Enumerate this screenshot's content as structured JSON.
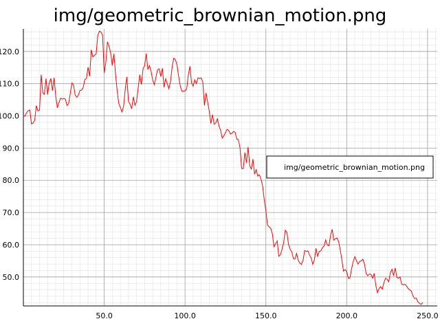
{
  "chart_data": {
    "type": "line",
    "title": "img/geometric_brownian_motion.png",
    "xlabel": "",
    "ylabel": "",
    "xlim": [
      0,
      256
    ],
    "ylim": [
      41,
      127
    ],
    "grid": true,
    "legend_placement": "right",
    "x_ticks": [
      50,
      100,
      150,
      200,
      250
    ],
    "x_tick_labels": [
      "50.0",
      "100.0",
      "150.0",
      "200.0",
      "250.0"
    ],
    "y_ticks": [
      50,
      60,
      70,
      80,
      90,
      100,
      110,
      120
    ],
    "y_tick_labels": [
      "50.0",
      "60.0",
      "70.0",
      "80.0",
      "90.0",
      "100.0",
      "110.0",
      "120.0"
    ],
    "series": [
      {
        "name": "img/geometric_brownian_motion.png",
        "color": "#ff0000",
        "x_start": 0,
        "x_step": 1,
        "values": [
          99.9,
          100.0,
          101.0,
          101.6,
          101.8,
          97.5,
          97.8,
          98.6,
          103.2,
          101.6,
          101.8,
          112.8,
          107.1,
          106.7,
          111.6,
          106.6,
          110.3,
          111.6,
          107.8,
          111.8,
          106.2,
          102.5,
          104.1,
          105.5,
          105.2,
          105.4,
          105.2,
          103.2,
          103.8,
          106.9,
          110.2,
          109.6,
          106.5,
          105.8,
          106.4,
          107.9,
          108.0,
          108.8,
          111.2,
          111.6,
          115.1,
          112.3,
          120.5,
          118.3,
          118.8,
          119.2,
          124.9,
          126.3,
          126.0,
          125.0,
          113.3,
          116.6,
          123.0,
          121.6,
          119.5,
          115.6,
          119.3,
          113.0,
          107.8,
          103.9,
          102.6,
          101.2,
          103.0,
          108.2,
          112.1,
          104.5,
          103.6,
          102.2,
          105.9,
          103.3,
          104.4,
          108.6,
          112.8,
          109.7,
          114.6,
          115.6,
          119.3,
          114.4,
          115.6,
          113.8,
          111.1,
          109.7,
          112.0,
          114.3,
          114.6,
          112.2,
          114.8,
          108.9,
          111.5,
          110.0,
          108.4,
          110.6,
          115.1,
          117.9,
          117.5,
          115.9,
          112.4,
          109.4,
          107.7,
          107.6,
          107.8,
          108.3,
          112.6,
          115.4,
          110.3,
          109.2,
          111.2,
          110.0,
          111.8,
          111.6,
          111.8,
          110.5,
          103.2,
          107.1,
          104.2,
          101.4,
          97.6,
          100.4,
          97.4,
          97.8,
          99.1,
          96.9,
          95.5,
          93.1,
          93.8,
          94.8,
          95.8,
          95.5,
          94.4,
          94.6,
          95.2,
          94.9,
          92.8,
          92.6,
          90.1,
          83.7,
          83.6,
          88.6,
          85.4,
          90.3,
          84.5,
          83.5,
          86.6,
          81.9,
          83.3,
          81.3,
          81.7,
          80.3,
          78.2,
          73.9,
          70.6,
          66.1,
          65.5,
          65.1,
          63.4,
          59.4,
          60.3,
          61.2,
          56.4,
          56.9,
          58.6,
          60.6,
          64.5,
          63.9,
          60.1,
          58.6,
          57.8,
          55.7,
          55.6,
          57.3,
          55.2,
          54.3,
          53.9,
          55.2,
          58.2,
          57.9,
          58.1,
          56.8,
          55.9,
          53.9,
          55.3,
          58.9,
          56.4,
          57.9,
          58.1,
          59.1,
          59.6,
          61.5,
          59.9,
          59.7,
          62.9,
          64.8,
          61.4,
          61.9,
          62.1,
          61.0,
          58.4,
          55.3,
          51.8,
          52.3,
          51.6,
          49.6,
          49.7,
          52.5,
          54.8,
          56.3,
          55.1,
          54.0,
          54.8,
          55.0,
          55.5,
          54.0,
          51.1,
          50.4,
          50.9,
          50.8,
          49.6,
          51.1,
          47.4,
          45.1,
          46.4,
          47.0,
          46.2,
          48.2,
          49.6,
          49.3,
          48.5,
          51.3,
          52.4,
          50.4,
          52.8,
          49.9,
          49.6,
          50.0,
          47.7,
          47.6,
          47.7,
          47.2,
          46.4,
          46.0,
          45.6,
          44.1,
          43.3,
          43.4,
          42.3,
          41.8,
          41.5,
          42.1
        ]
      }
    ]
  }
}
